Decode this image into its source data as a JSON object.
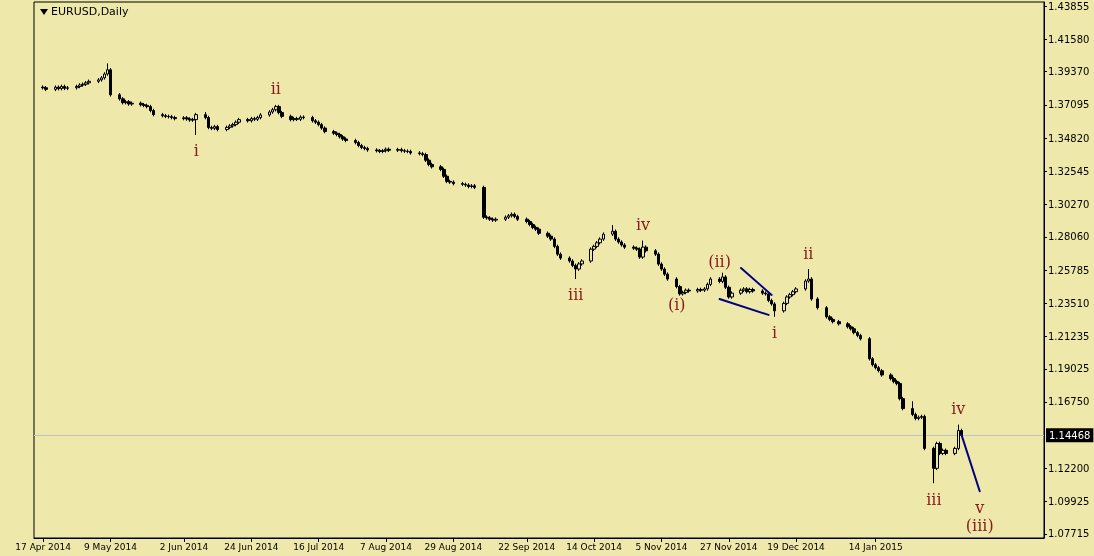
{
  "chart_data": {
    "type": "candlestick",
    "title": "EURUSD,Daily",
    "color": "#000000",
    "marker": "none",
    "x": [
      "2014-04-17",
      "2014-04-18",
      "2014-04-21",
      "2014-04-22",
      "2014-04-23",
      "2014-04-24",
      "2014-04-25",
      "2014-04-28",
      "2014-04-29",
      "2014-04-30",
      "2014-05-01",
      "2014-05-02",
      "2014-05-05",
      "2014-05-06",
      "2014-05-07",
      "2014-05-08",
      "2014-05-09",
      "2014-05-12",
      "2014-05-13",
      "2014-05-14",
      "2014-05-15",
      "2014-05-16",
      "2014-05-19",
      "2014-05-20",
      "2014-05-21",
      "2014-05-22",
      "2014-05-23",
      "2014-05-26",
      "2014-05-27",
      "2014-05-28",
      "2014-05-29",
      "2014-05-30",
      "2014-06-02",
      "2014-06-03",
      "2014-06-04",
      "2014-06-05",
      "2014-06-06",
      "2014-06-09",
      "2014-06-10",
      "2014-06-11",
      "2014-06-12",
      "2014-06-13",
      "2014-06-16",
      "2014-06-17",
      "2014-06-18",
      "2014-06-19",
      "2014-06-20",
      "2014-06-23",
      "2014-06-24",
      "2014-06-25",
      "2014-06-26",
      "2014-06-27",
      "2014-06-30",
      "2014-07-01",
      "2014-07-02",
      "2014-07-03",
      "2014-07-04",
      "2014-07-07",
      "2014-07-08",
      "2014-07-09",
      "2014-07-10",
      "2014-07-11",
      "2014-07-14",
      "2014-07-15",
      "2014-07-16",
      "2014-07-17",
      "2014-07-18",
      "2014-07-21",
      "2014-07-22",
      "2014-07-23",
      "2014-07-24",
      "2014-07-25",
      "2014-07-28",
      "2014-07-29",
      "2014-07-30",
      "2014-07-31",
      "2014-08-01",
      "2014-08-04",
      "2014-08-05",
      "2014-08-06",
      "2014-08-07",
      "2014-08-08",
      "2014-08-11",
      "2014-08-12",
      "2014-08-13",
      "2014-08-14",
      "2014-08-15",
      "2014-08-18",
      "2014-08-19",
      "2014-08-20",
      "2014-08-21",
      "2014-08-22",
      "2014-08-25",
      "2014-08-26",
      "2014-08-27",
      "2014-08-28",
      "2014-08-29",
      "2014-09-01",
      "2014-09-02",
      "2014-09-03",
      "2014-09-04",
      "2014-09-05",
      "2014-09-08",
      "2014-09-09",
      "2014-09-10",
      "2014-09-11",
      "2014-09-12",
      "2014-09-15",
      "2014-09-16",
      "2014-09-17",
      "2014-09-18",
      "2014-09-19",
      "2014-09-22",
      "2014-09-23",
      "2014-09-24",
      "2014-09-25",
      "2014-09-26",
      "2014-09-29",
      "2014-09-30",
      "2014-10-01",
      "2014-10-02",
      "2014-10-03",
      "2014-10-06",
      "2014-10-07",
      "2014-10-08",
      "2014-10-09",
      "2014-10-10",
      "2014-10-13",
      "2014-10-14",
      "2014-10-15",
      "2014-10-16",
      "2014-10-17",
      "2014-10-20",
      "2014-10-21",
      "2014-10-22",
      "2014-10-23",
      "2014-10-24",
      "2014-10-27",
      "2014-10-28",
      "2014-10-29",
      "2014-10-30",
      "2014-10-31",
      "2014-11-03",
      "2014-11-04",
      "2014-11-05",
      "2014-11-06",
      "2014-11-07",
      "2014-11-10",
      "2014-11-11",
      "2014-11-12",
      "2014-11-13",
      "2014-11-14",
      "2014-11-17",
      "2014-11-18",
      "2014-11-19",
      "2014-11-20",
      "2014-11-21",
      "2014-11-24",
      "2014-11-25",
      "2014-11-26",
      "2014-11-27",
      "2014-11-28",
      "2014-12-01",
      "2014-12-02",
      "2014-12-03",
      "2014-12-04",
      "2014-12-05",
      "2014-12-08",
      "2014-12-09",
      "2014-12-10",
      "2014-12-11",
      "2014-12-12",
      "2014-12-15",
      "2014-12-16",
      "2014-12-17",
      "2014-12-18",
      "2014-12-19",
      "2014-12-22",
      "2014-12-23",
      "2014-12-24",
      "2014-12-26",
      "2014-12-29",
      "2014-12-30",
      "2014-12-31",
      "2015-01-02",
      "2015-01-05",
      "2015-01-06",
      "2015-01-07",
      "2015-01-08",
      "2015-01-09",
      "2015-01-12",
      "2015-01-13",
      "2015-01-14",
      "2015-01-15",
      "2015-01-16",
      "2015-01-19",
      "2015-01-20",
      "2015-01-21",
      "2015-01-22",
      "2015-01-23",
      "2015-01-26",
      "2015-01-27",
      "2015-01-28",
      "2015-01-29",
      "2015-01-30",
      "2015-02-02",
      "2015-02-03",
      "2015-02-04",
      "2015-02-05",
      "2015-02-06",
      "2015-02-09",
      "2015-02-10",
      "2015-02-11"
    ],
    "ohlc": [
      [
        1.383,
        1.3842,
        1.3814,
        1.3826
      ],
      [
        1.3826,
        1.3838,
        1.3803,
        1.3815
      ],
      [
        1.3815,
        1.3842,
        1.3803,
        1.383
      ],
      [
        1.383,
        1.3842,
        1.3808,
        1.382
      ],
      [
        1.382,
        1.3847,
        1.3808,
        1.3835
      ],
      [
        1.3835,
        1.3847,
        1.381,
        1.3822
      ],
      [
        1.3822,
        1.3838,
        1.381,
        1.3826
      ],
      [
        1.3826,
        1.3847,
        1.3814,
        1.3835
      ],
      [
        1.3835,
        1.3857,
        1.3823,
        1.3845
      ],
      [
        1.3845,
        1.3862,
        1.3833,
        1.385
      ],
      [
        1.385,
        1.3872,
        1.3838,
        1.386
      ],
      [
        1.386,
        1.3882,
        1.3848,
        1.387
      ],
      [
        1.387,
        1.3892,
        1.3858,
        1.388
      ],
      [
        1.388,
        1.3906,
        1.3868,
        1.3894
      ],
      [
        1.3894,
        1.3932,
        1.3882,
        1.392
      ],
      [
        1.392,
        1.3993,
        1.3908,
        1.3949
      ],
      [
        1.3949,
        1.3961,
        1.3766,
        1.3778
      ],
      [
        1.3778,
        1.379,
        1.3738,
        1.375
      ],
      [
        1.375,
        1.3762,
        1.3712,
        1.3724
      ],
      [
        1.3724,
        1.3742,
        1.3712,
        1.373
      ],
      [
        1.373,
        1.3742,
        1.3703,
        1.3715
      ],
      [
        1.3715,
        1.3732,
        1.3703,
        1.372
      ],
      [
        1.372,
        1.3732,
        1.3698,
        1.371
      ],
      [
        1.371,
        1.3722,
        1.3693,
        1.3705
      ],
      [
        1.3705,
        1.3717,
        1.3685,
        1.3697
      ],
      [
        1.3697,
        1.3709,
        1.3658,
        1.367
      ],
      [
        1.367,
        1.3682,
        1.363,
        1.3642
      ],
      [
        1.3642,
        1.3654,
        1.3623,
        1.3635
      ],
      [
        1.3635,
        1.3647,
        1.3618,
        1.363
      ],
      [
        1.363,
        1.3642,
        1.3616,
        1.3628
      ],
      [
        1.3628,
        1.364,
        1.361,
        1.3622
      ],
      [
        1.3622,
        1.3634,
        1.3603,
        1.3615
      ],
      [
        1.3615,
        1.3632,
        1.3603,
        1.362
      ],
      [
        1.362,
        1.3632,
        1.36,
        1.3612
      ],
      [
        1.3612,
        1.3624,
        1.3593,
        1.3605
      ],
      [
        1.3605,
        1.362,
        1.3593,
        1.3608
      ],
      [
        1.3608,
        1.3654,
        1.3503,
        1.3642
      ],
      [
        1.3642,
        1.366,
        1.361,
        1.3622
      ],
      [
        1.3622,
        1.3634,
        1.3542,
        1.3554
      ],
      [
        1.3554,
        1.3566,
        1.3536,
        1.3548
      ],
      [
        1.3548,
        1.3572,
        1.3536,
        1.356
      ],
      [
        1.356,
        1.3572,
        1.3528,
        1.354
      ],
      [
        1.354,
        1.3567,
        1.3528,
        1.3555
      ],
      [
        1.3555,
        1.3577,
        1.3543,
        1.3565
      ],
      [
        1.3565,
        1.3586,
        1.3553,
        1.3574
      ],
      [
        1.3574,
        1.3602,
        1.3562,
        1.359
      ],
      [
        1.359,
        1.362,
        1.3578,
        1.3608
      ],
      [
        1.3608,
        1.362,
        1.3588,
        1.36
      ],
      [
        1.36,
        1.3627,
        1.3588,
        1.3615
      ],
      [
        1.3615,
        1.3627,
        1.3598,
        1.361
      ],
      [
        1.361,
        1.3634,
        1.3598,
        1.3622
      ],
      [
        1.3622,
        1.3652,
        1.361,
        1.364
      ],
      [
        1.364,
        1.3672,
        1.3628,
        1.366
      ],
      [
        1.366,
        1.3688,
        1.3648,
        1.3676
      ],
      [
        1.3676,
        1.3709,
        1.3664,
        1.3697
      ],
      [
        1.3697,
        1.3709,
        1.3644,
        1.3656
      ],
      [
        1.3656,
        1.3668,
        1.3618,
        1.363
      ],
      [
        1.363,
        1.3642,
        1.3596,
        1.3608
      ],
      [
        1.3608,
        1.3627,
        1.3596,
        1.3615
      ],
      [
        1.3615,
        1.3627,
        1.3598,
        1.361
      ],
      [
        1.361,
        1.3637,
        1.3598,
        1.3625
      ],
      [
        1.3625,
        1.3637,
        1.361,
        1.3622
      ],
      [
        1.3622,
        1.3634,
        1.3588,
        1.36
      ],
      [
        1.36,
        1.3612,
        1.3578,
        1.359
      ],
      [
        1.359,
        1.3602,
        1.3562,
        1.3574
      ],
      [
        1.3574,
        1.3586,
        1.3538,
        1.355
      ],
      [
        1.355,
        1.3562,
        1.3514,
        1.3526
      ],
      [
        1.3526,
        1.3538,
        1.3503,
        1.3515
      ],
      [
        1.3515,
        1.3527,
        1.3494,
        1.3506
      ],
      [
        1.3506,
        1.3518,
        1.3478,
        1.349
      ],
      [
        1.349,
        1.3502,
        1.3463,
        1.3475
      ],
      [
        1.3475,
        1.3487,
        1.3453,
        1.3465
      ],
      [
        1.3465,
        1.3477,
        1.3439,
        1.3451
      ],
      [
        1.3451,
        1.3463,
        1.3418,
        1.343
      ],
      [
        1.343,
        1.3442,
        1.3405,
        1.3417
      ],
      [
        1.3417,
        1.3429,
        1.3398,
        1.341
      ],
      [
        1.341,
        1.3422,
        1.3388,
        1.34
      ],
      [
        1.34,
        1.3412,
        1.3383,
        1.3395
      ],
      [
        1.3395,
        1.3407,
        1.3378,
        1.339
      ],
      [
        1.339,
        1.3407,
        1.3378,
        1.3395
      ],
      [
        1.3395,
        1.3417,
        1.3383,
        1.3405
      ],
      [
        1.3405,
        1.3417,
        1.3386,
        1.3398
      ],
      [
        1.3398,
        1.3415,
        1.3386,
        1.3403
      ],
      [
        1.3403,
        1.3415,
        1.3383,
        1.3395
      ],
      [
        1.3395,
        1.3407,
        1.338,
        1.3392
      ],
      [
        1.3392,
        1.3404,
        1.3378,
        1.339
      ],
      [
        1.339,
        1.3402,
        1.3368,
        1.338
      ],
      [
        1.338,
        1.3392,
        1.3363,
        1.3375
      ],
      [
        1.3375,
        1.3387,
        1.3357,
        1.3369
      ],
      [
        1.3369,
        1.3381,
        1.3318,
        1.333
      ],
      [
        1.333,
        1.3342,
        1.3289,
        1.3301
      ],
      [
        1.3301,
        1.3313,
        1.3273,
        1.3285
      ],
      [
        1.3285,
        1.3297,
        1.3255,
        1.3267
      ],
      [
        1.3267,
        1.3279,
        1.3208,
        1.322
      ],
      [
        1.322,
        1.3232,
        1.3173,
        1.3185
      ],
      [
        1.3185,
        1.3197,
        1.3168,
        1.318
      ],
      [
        1.318,
        1.3192,
        1.3158,
        1.317
      ],
      [
        1.317,
        1.3182,
        1.3153,
        1.3165
      ],
      [
        1.3165,
        1.3177,
        1.3148,
        1.316
      ],
      [
        1.316,
        1.3172,
        1.3138,
        1.315
      ],
      [
        1.315,
        1.3167,
        1.3138,
        1.3155
      ],
      [
        1.3155,
        1.3167,
        1.3132,
        1.3144
      ],
      [
        1.3144,
        1.3156,
        1.2928,
        1.294
      ],
      [
        1.294,
        1.2952,
        1.2923,
        1.2935
      ],
      [
        1.2935,
        1.2947,
        1.2914,
        1.2926
      ],
      [
        1.2926,
        1.2938,
        1.2908,
        1.292
      ],
      [
        1.292,
        1.2938,
        1.2908,
        1.2926
      ],
      [
        1.2926,
        1.2952,
        1.2914,
        1.294
      ],
      [
        1.294,
        1.2962,
        1.2928,
        1.295
      ],
      [
        1.295,
        1.2972,
        1.2938,
        1.296
      ],
      [
        1.296,
        1.2972,
        1.2933,
        1.2945
      ],
      [
        1.2945,
        1.2957,
        1.2914,
        1.2926
      ],
      [
        1.2926,
        1.2938,
        1.2898,
        1.291
      ],
      [
        1.291,
        1.2922,
        1.2878,
        1.289
      ],
      [
        1.289,
        1.2902,
        1.2858,
        1.287
      ],
      [
        1.287,
        1.2882,
        1.2846,
        1.2858
      ],
      [
        1.2858,
        1.287,
        1.2818,
        1.283
      ],
      [
        1.283,
        1.2842,
        1.2798,
        1.281
      ],
      [
        1.281,
        1.2822,
        1.2778,
        1.279
      ],
      [
        1.279,
        1.2802,
        1.2728,
        1.274
      ],
      [
        1.274,
        1.2752,
        1.2675,
        1.2687
      ],
      [
        1.2687,
        1.2699,
        1.2648,
        1.266
      ],
      [
        1.266,
        1.2672,
        1.2628,
        1.264
      ],
      [
        1.264,
        1.2652,
        1.2598,
        1.261
      ],
      [
        1.261,
        1.2622,
        1.2517,
        1.2585
      ],
      [
        1.2585,
        1.2632,
        1.2573,
        1.262
      ],
      [
        1.262,
        1.2652,
        1.2608,
        1.264
      ],
      [
        1.264,
        1.2733,
        1.2628,
        1.2721
      ],
      [
        1.2721,
        1.2752,
        1.2709,
        1.274
      ],
      [
        1.274,
        1.2777,
        1.2728,
        1.2765
      ],
      [
        1.2765,
        1.2802,
        1.2753,
        1.279
      ],
      [
        1.279,
        1.2836,
        1.2778,
        1.2824
      ],
      [
        1.2824,
        1.2886,
        1.2812,
        1.2844
      ],
      [
        1.2844,
        1.2856,
        1.2778,
        1.279
      ],
      [
        1.279,
        1.2802,
        1.2758,
        1.277
      ],
      [
        1.277,
        1.2782,
        1.2738,
        1.275
      ],
      [
        1.275,
        1.2762,
        1.2723,
        1.2735
      ],
      [
        1.2735,
        1.2747,
        1.2716,
        1.2728
      ],
      [
        1.2728,
        1.274,
        1.2709,
        1.2721
      ],
      [
        1.2721,
        1.2733,
        1.2655,
        1.2667
      ],
      [
        1.2667,
        1.278,
        1.2655,
        1.2735
      ],
      [
        1.2735,
        1.2747,
        1.2698,
        1.271
      ],
      [
        1.271,
        1.2722,
        1.2675,
        1.2687
      ],
      [
        1.2687,
        1.2699,
        1.2607,
        1.2619
      ],
      [
        1.2619,
        1.2631,
        1.2573,
        1.2585
      ],
      [
        1.2585,
        1.2597,
        1.2538,
        1.255
      ],
      [
        1.255,
        1.2562,
        1.2505,
        1.2517
      ],
      [
        1.2517,
        1.2529,
        1.2453,
        1.2465
      ],
      [
        1.2465,
        1.2477,
        1.2403,
        1.2415
      ],
      [
        1.2415,
        1.2437,
        1.2403,
        1.2425
      ],
      [
        1.2425,
        1.2452,
        1.2413,
        1.244
      ],
      [
        1.244,
        1.2452,
        1.2423,
        1.2435
      ],
      [
        1.2435,
        1.2457,
        1.2423,
        1.2445
      ],
      [
        1.2445,
        1.2457,
        1.2428,
        1.244
      ],
      [
        1.244,
        1.2461,
        1.2428,
        1.2449
      ],
      [
        1.2449,
        1.2492,
        1.2437,
        1.248
      ],
      [
        1.248,
        1.2529,
        1.2468,
        1.2517
      ],
      [
        1.2517,
        1.2529,
        1.2488,
        1.25
      ],
      [
        1.25,
        1.256,
        1.2488,
        1.2531
      ],
      [
        1.2531,
        1.2543,
        1.2448,
        1.246
      ],
      [
        1.246,
        1.2472,
        1.2382,
        1.2394
      ],
      [
        1.2394,
        1.2432,
        1.2382,
        1.242
      ],
      [
        1.242,
        1.2452,
        1.2408,
        1.244
      ],
      [
        1.244,
        1.2461,
        1.2428,
        1.2449
      ],
      [
        1.2449,
        1.2461,
        1.2418,
        1.243
      ],
      [
        1.243,
        1.2457,
        1.2418,
        1.2445
      ],
      [
        1.2445,
        1.2457,
        1.2423,
        1.2435
      ],
      [
        1.2435,
        1.2447,
        1.2408,
        1.242
      ],
      [
        1.242,
        1.2432,
        1.2403,
        1.2415
      ],
      [
        1.2415,
        1.2427,
        1.2358,
        1.237
      ],
      [
        1.237,
        1.2382,
        1.2334,
        1.2346
      ],
      [
        1.2346,
        1.2358,
        1.2258,
        1.2299
      ],
      [
        1.2299,
        1.2362,
        1.2287,
        1.235
      ],
      [
        1.235,
        1.2406,
        1.2338,
        1.2394
      ],
      [
        1.2394,
        1.2422,
        1.2382,
        1.241
      ],
      [
        1.241,
        1.2442,
        1.2398,
        1.243
      ],
      [
        1.243,
        1.2461,
        1.2418,
        1.2449
      ],
      [
        1.2449,
        1.2515,
        1.2437,
        1.2503
      ],
      [
        1.2503,
        1.2585,
        1.2491,
        1.2517
      ],
      [
        1.2517,
        1.2529,
        1.2368,
        1.238
      ],
      [
        1.238,
        1.2392,
        1.2308,
        1.232
      ],
      [
        1.232,
        1.2332,
        1.2246,
        1.2258
      ],
      [
        1.2258,
        1.227,
        1.2228,
        1.224
      ],
      [
        1.224,
        1.2252,
        1.2213,
        1.2225
      ],
      [
        1.2225,
        1.2237,
        1.2198,
        1.221
      ],
      [
        1.221,
        1.2222,
        1.2178,
        1.219
      ],
      [
        1.219,
        1.2202,
        1.2164,
        1.2176
      ],
      [
        1.2176,
        1.2188,
        1.2138,
        1.215
      ],
      [
        1.215,
        1.2162,
        1.2118,
        1.213
      ],
      [
        1.213,
        1.2142,
        1.2096,
        1.2108
      ],
      [
        1.2108,
        1.212,
        1.1959,
        1.1971
      ],
      [
        1.1971,
        1.1983,
        1.1918,
        1.193
      ],
      [
        1.193,
        1.1942,
        1.1898,
        1.191
      ],
      [
        1.191,
        1.1922,
        1.1877,
        1.1889
      ],
      [
        1.1889,
        1.1901,
        1.1848,
        1.186
      ],
      [
        1.186,
        1.1872,
        1.1823,
        1.1835
      ],
      [
        1.1835,
        1.1847,
        1.1803,
        1.1815
      ],
      [
        1.1815,
        1.1827,
        1.1789,
        1.1801
      ],
      [
        1.1801,
        1.1813,
        1.1686,
        1.1698
      ],
      [
        1.1698,
        1.171,
        1.1618,
        1.163
      ],
      [
        1.163,
        1.168,
        1.1578,
        1.159
      ],
      [
        1.159,
        1.1602,
        1.155,
        1.1562
      ],
      [
        1.1562,
        1.1582,
        1.155,
        1.157
      ],
      [
        1.157,
        1.1588,
        1.1558,
        1.1576
      ],
      [
        1.1576,
        1.1588,
        1.1345,
        1.1357
      ],
      [
        1.1357,
        1.1369,
        1.1119,
        1.1221
      ],
      [
        1.1221,
        1.1403,
        1.1209,
        1.1391
      ],
      [
        1.1391,
        1.1403,
        1.1311,
        1.1323
      ],
      [
        1.1323,
        1.1356,
        1.1311,
        1.1344
      ],
      [
        1.1344,
        1.1356,
        1.1311,
        1.1323
      ],
      [
        1.1323,
        1.1369,
        1.1311,
        1.1357
      ],
      [
        1.1357,
        1.152,
        1.1345,
        1.148
      ],
      [
        1.148,
        1.1492,
        1.1435,
        1.1447
      ]
    ],
    "series": [
      {
        "type": "line",
        "color": "#000080",
        "x": [
          "2014-12-01",
          "2014-12-11"
        ],
        "values": [
          1.2592,
          1.2408
        ]
      },
      {
        "type": "line",
        "color": "#000080",
        "x": [
          "2014-11-24",
          "2014-12-10"
        ],
        "values": [
          1.238,
          1.2271
        ]
      },
      {
        "type": "line",
        "color": "#000080",
        "x": [
          "2015-02-11",
          "2015-02-17"
        ],
        "values": [
          1.1453,
          1.1064
        ]
      }
    ],
    "xlim": [
      "2014-04-14",
      "2015-03-10"
    ],
    "xticks": [
      {
        "value": "2014-04-17",
        "label": "17 Apr 2014"
      },
      {
        "value": "2014-05-09",
        "label": "9 May 2014"
      },
      {
        "value": "2014-06-02",
        "label": "2 Jun 2014"
      },
      {
        "value": "2014-06-24",
        "label": "24 Jun 2014"
      },
      {
        "value": "2014-07-16",
        "label": "16 Jul 2014"
      },
      {
        "value": "2014-08-07",
        "label": "7 Aug 2014"
      },
      {
        "value": "2014-08-29",
        "label": "29 Aug 2014"
      },
      {
        "value": "2014-09-22",
        "label": "22 Sep 2014"
      },
      {
        "value": "2014-10-14",
        "label": "14 Oct 2014"
      },
      {
        "value": "2014-11-05",
        "label": "5 Nov 2014"
      },
      {
        "value": "2014-11-27",
        "label": "27 Nov 2014"
      },
      {
        "value": "2014-12-19",
        "label": "19 Dec 2014"
      },
      {
        "value": "2015-01-14",
        "label": "14 Jan 2015"
      }
    ],
    "ylim": [
      1.0744,
      1.4413
    ],
    "yticks": [
      1.07715,
      1.09925,
      {
        "value": 1.122,
        "label": "1.12200"
      },
      {
        "value": 1.1675,
        "label": "1.16750"
      },
      1.19025,
      1.21235,
      {
        "value": 1.2351,
        "label": "1.23510"
      },
      1.25785,
      {
        "value": 1.2806,
        "label": "1.28060"
      },
      {
        "value": 1.3027,
        "label": "1.30270"
      },
      1.32545,
      {
        "value": 1.3482,
        "label": "1.34820"
      },
      1.37095,
      {
        "value": 1.3937,
        "label": "1.39370"
      },
      {
        "value": 1.4158,
        "label": "1.41580"
      },
      1.43855
    ],
    "ref_lines": [
      {
        "axis": "y",
        "value": 1.14468,
        "label": "1.14468",
        "color": "#c0c0c0"
      }
    ],
    "annotations": [
      {
        "text": "i",
        "x": "2014-06-06",
        "y": 1.3503
      },
      {
        "text": "ii",
        "x": "2014-07-02",
        "y": 1.3709
      },
      {
        "text": "iii",
        "x": "2014-10-08",
        "y": 1.2517
      },
      {
        "text": "iv",
        "x": "2014-10-30",
        "y": 1.278
      },
      {
        "text": "(i)",
        "x": "2014-11-10",
        "y": 1.2453
      },
      {
        "text": "(ii)",
        "x": "2014-11-24",
        "y": 1.2529
      },
      {
        "text": "i",
        "x": "2014-12-12",
        "y": 1.2258
      },
      {
        "text": "ii",
        "x": "2014-12-23",
        "y": 1.2585
      },
      {
        "text": "iii",
        "x": "2015-02-02",
        "y": 1.1119
      },
      {
        "text": "iv",
        "x": "2015-02-10",
        "y": 1.152
      },
      {
        "text": "v",
        "x": "2015-02-17",
        "y": 1.1064
      },
      {
        "text": "(iii)",
        "x": "2015-02-17",
        "y": 1.1064
      }
    ]
  }
}
